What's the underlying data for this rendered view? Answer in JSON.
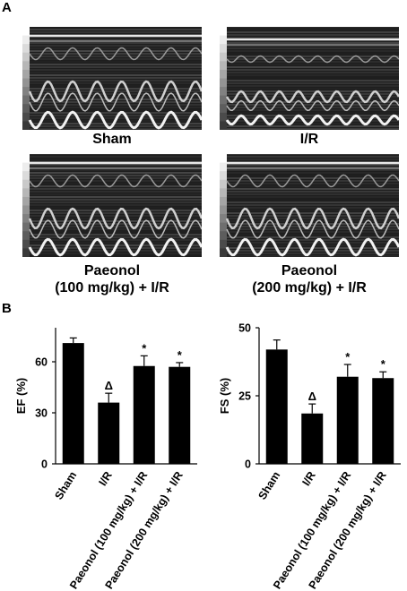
{
  "panel_a": {
    "letter": "A",
    "images": [
      {
        "label": "Sham"
      },
      {
        "label": "I/R"
      },
      {
        "label_lines": [
          "Paeonol",
          "(100 mg/kg) + I/R"
        ]
      },
      {
        "label_lines": [
          "Paeonol",
          "(200 mg/kg) + I/R"
        ]
      }
    ]
  },
  "panel_b": {
    "letter": "B"
  },
  "chart_data": [
    {
      "type": "bar",
      "title": "",
      "ylabel": "EF (%)",
      "xlabel": "",
      "categories": [
        "Sham",
        "I/R",
        "Paeonol (100 mg/kg) + I/R",
        "Paeonol (200 mg/kg) + I/R"
      ],
      "values": [
        71,
        36,
        57.5,
        57
      ],
      "errors": [
        3,
        5.5,
        6,
        2.5
      ],
      "annotations": [
        "",
        "Δ",
        "*",
        "*"
      ],
      "ylim": [
        0,
        80
      ],
      "yticks": [
        0,
        30,
        60
      ],
      "color": "#000000"
    },
    {
      "type": "bar",
      "title": "",
      "ylabel": "FS (%)",
      "xlabel": "",
      "categories": [
        "Sham",
        "I/R",
        "Paeonol (100 mg/kg) + I/R",
        "Paeonol (200 mg/kg) + I/R"
      ],
      "values": [
        42,
        18.5,
        32,
        31.5
      ],
      "errors": [
        3.5,
        3.5,
        4.5,
        2.3
      ],
      "annotations": [
        "",
        "Δ",
        "*",
        "*"
      ],
      "ylim": [
        0,
        50
      ],
      "yticks": [
        0,
        25,
        50
      ],
      "color": "#000000"
    }
  ]
}
